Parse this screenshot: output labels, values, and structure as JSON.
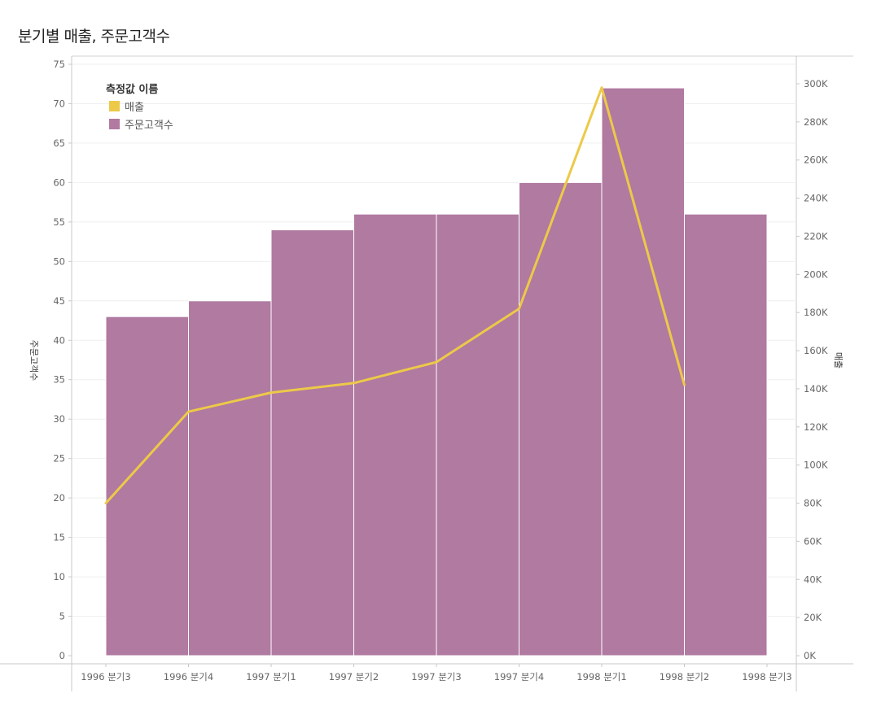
{
  "title": "분기별 매출, 주문고객수",
  "chart_data": {
    "type": "bar",
    "categories": [
      "1996 분기3",
      "1996 분기4",
      "1997 분기1",
      "1997 분기2",
      "1997 분기3",
      "1997 분기4",
      "1998 분기1",
      "1998 분기2",
      "1998 분기3"
    ],
    "series": [
      {
        "name": "주문고객수",
        "type": "bar",
        "axis": "left",
        "color": "#b07aa1",
        "values": [
          43,
          45,
          54,
          56,
          56,
          60,
          72,
          56,
          null
        ]
      },
      {
        "name": "매출",
        "type": "line",
        "axis": "right",
        "color": "#edc948",
        "values": [
          80000,
          128000,
          138000,
          143000,
          154000,
          182000,
          298000,
          142000,
          null
        ]
      }
    ],
    "left_axis": {
      "label": "주문고객수",
      "min": 0,
      "max": 75,
      "ticks": [
        "0",
        "5",
        "10",
        "15",
        "20",
        "25",
        "30",
        "35",
        "40",
        "45",
        "50",
        "55",
        "60",
        "65",
        "70",
        "75"
      ]
    },
    "right_axis": {
      "label": "매출",
      "min": 0,
      "max": 310000,
      "ticks": [
        "0K",
        "20K",
        "40K",
        "60K",
        "80K",
        "100K",
        "120K",
        "140K",
        "160K",
        "180K",
        "200K",
        "220K",
        "240K",
        "260K",
        "280K",
        "300K"
      ]
    },
    "legend": {
      "title": "측정값 이름",
      "position": "top-left",
      "items": [
        {
          "label": "매출",
          "color": "#edc948"
        },
        {
          "label": "주문고객수",
          "color": "#b07aa1"
        }
      ]
    },
    "grid": true
  }
}
